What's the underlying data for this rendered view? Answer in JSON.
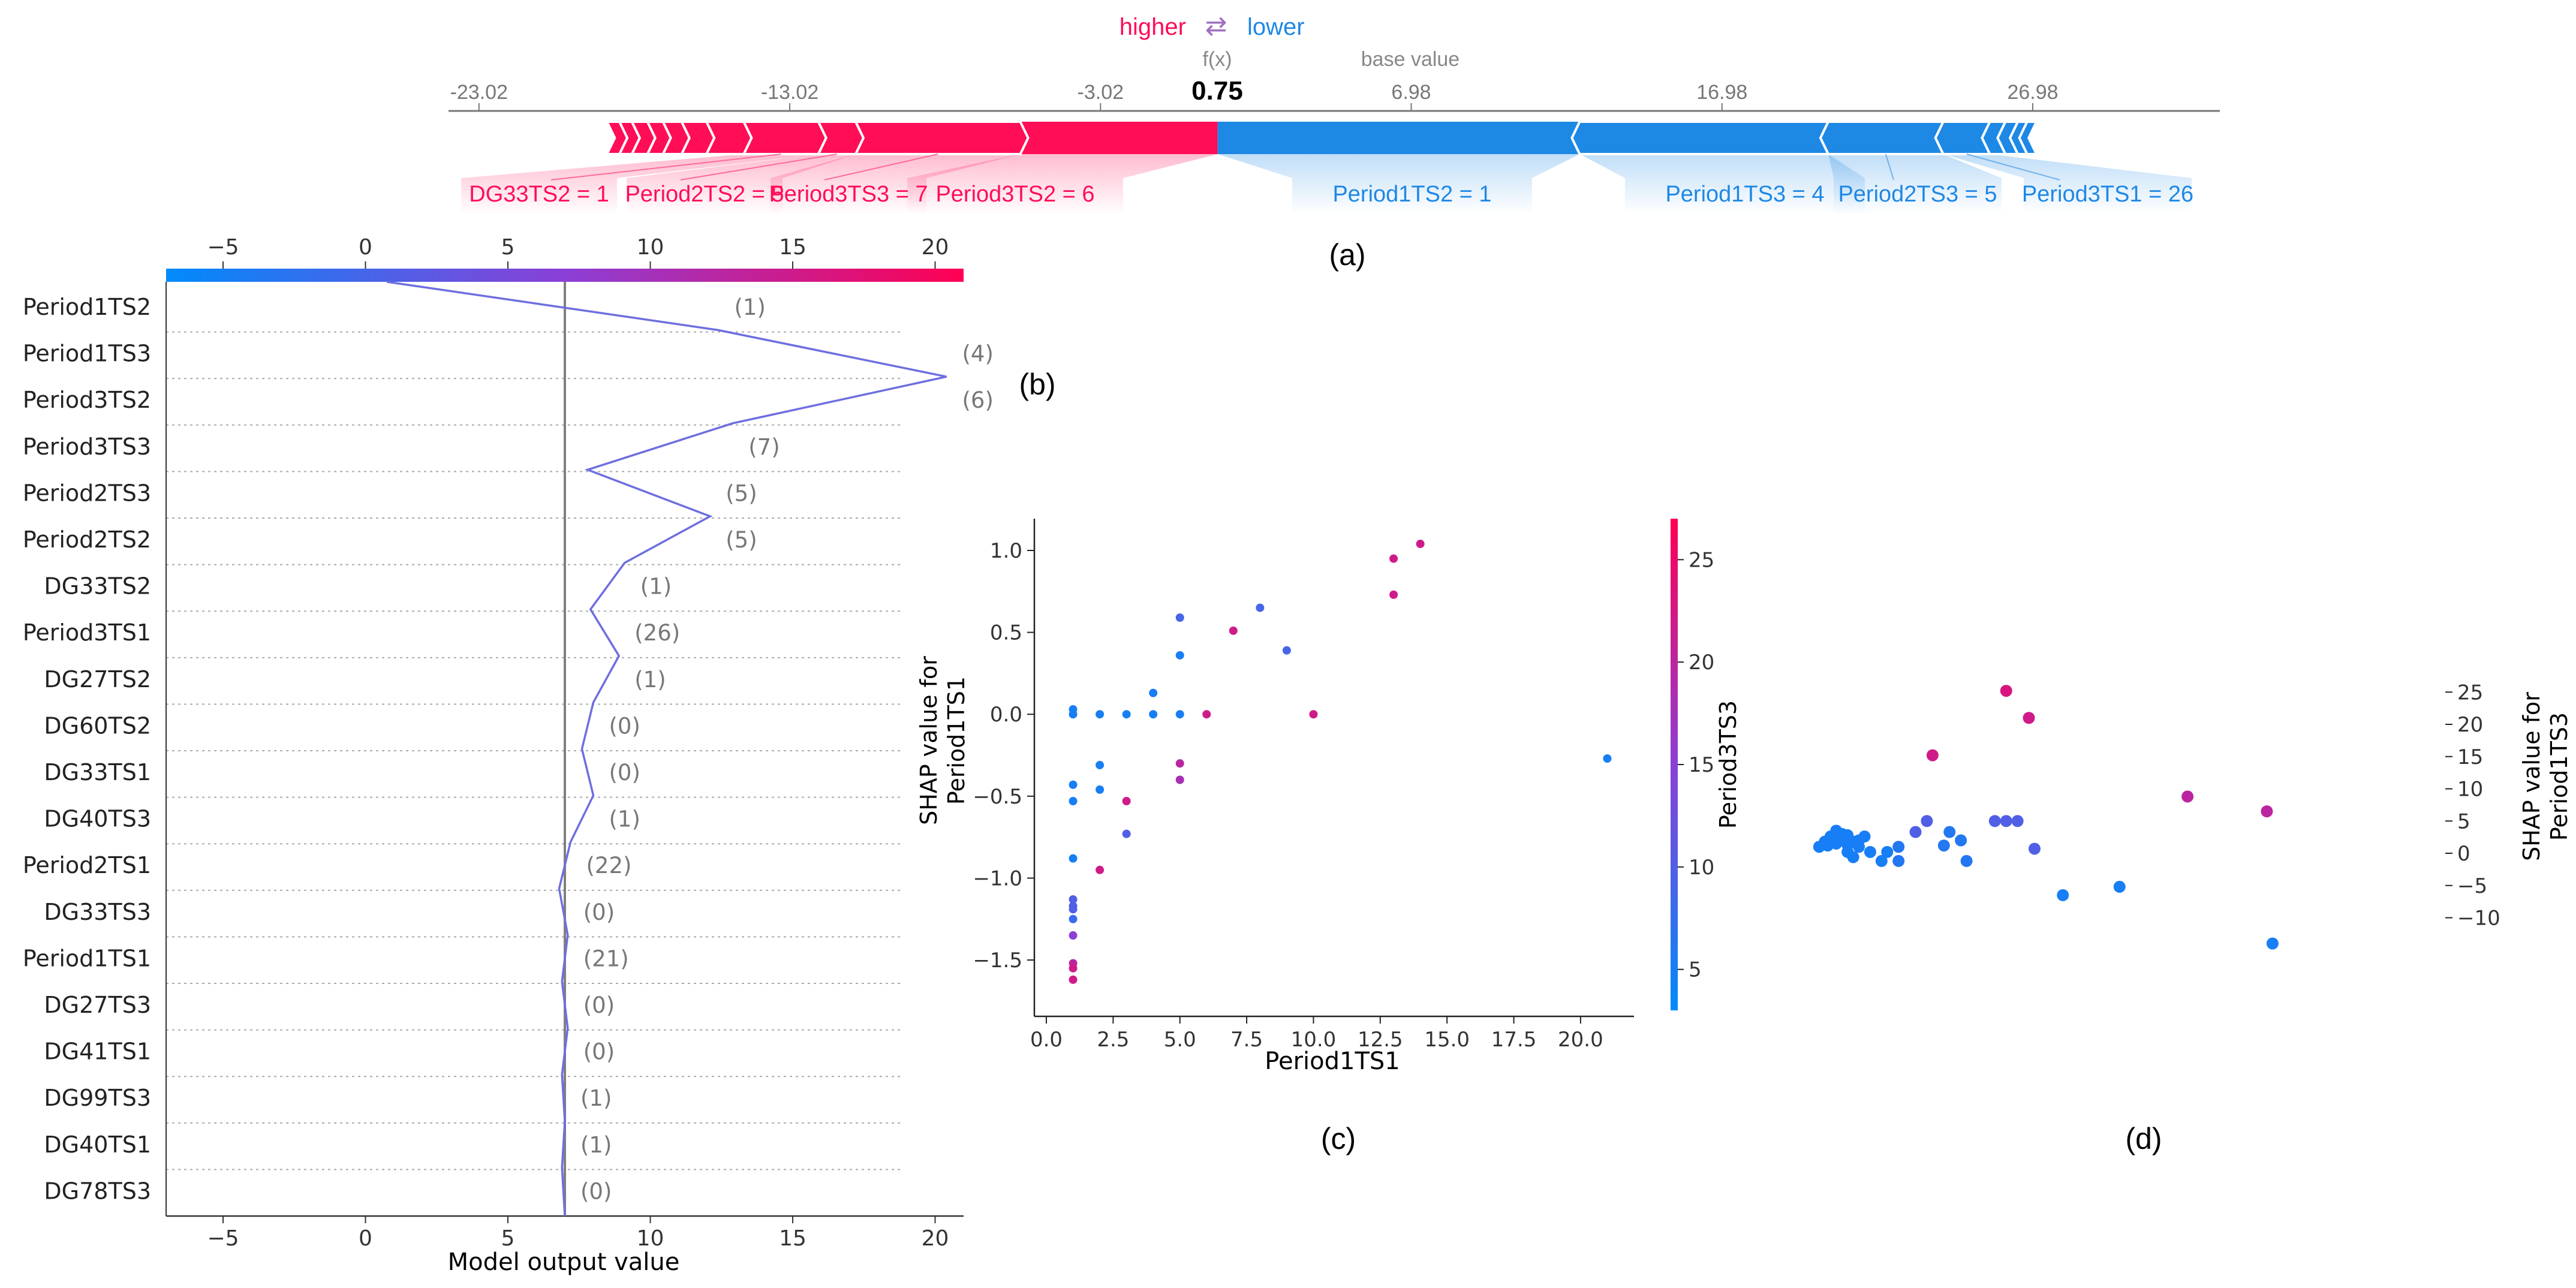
{
  "panel_labels": {
    "a": "(a)",
    "b": "(b)",
    "c": "(c)",
    "d": "(d)"
  },
  "colors": {
    "pos": "#ff0d57",
    "neg": "#1e88e5",
    "line": "#6e6ee0",
    "grey": "#777777"
  },
  "chart_data": [
    {
      "type": "force",
      "id": "a",
      "legend_higher": "higher",
      "legend_arrow": "⇄",
      "legend_lower": "lower",
      "fx_label": "f(x)",
      "fx_value": "0.75",
      "base_label": "base value",
      "ticks": [
        "-23.02",
        "-13.02",
        "-3.02",
        "6.98",
        "16.98",
        "26.98"
      ],
      "tick_values": [
        -23.02,
        -13.02,
        -3.02,
        6.98,
        16.98,
        26.98
      ],
      "xlim": [
        -24,
        33
      ],
      "output_value": 0.75,
      "base_value": 6.98,
      "positive": [
        {
          "label": "Period3TS2 = 6",
          "start": 0.75,
          "end": -5.6
        },
        {
          "label": "Period3TS3 = 7",
          "start": -5.6,
          "end": -10.9
        },
        {
          "label": "Period2TS2 = 5",
          "start": -10.9,
          "end": -12.1
        },
        {
          "label": "DG33TS2 = 1",
          "start": -12.1,
          "end": -14.5
        },
        {
          "label": "",
          "start": -14.5,
          "end": -15.7
        },
        {
          "label": "",
          "start": -15.7,
          "end": -16.5
        },
        {
          "label": "",
          "start": -16.5,
          "end": -17.1
        },
        {
          "label": "",
          "start": -17.1,
          "end": -17.6
        },
        {
          "label": "",
          "start": -17.6,
          "end": -18.1
        },
        {
          "label": "",
          "start": -18.1,
          "end": -18.5
        },
        {
          "label": "",
          "start": -18.5,
          "end": -18.9
        }
      ],
      "negative": [
        {
          "label": "Period1TS2 = 1",
          "start": 0.75,
          "end": 12.4
        },
        {
          "label": "Period1TS3 = 4",
          "start": 12.4,
          "end": 20.4
        },
        {
          "label": "Period2TS3 = 5",
          "start": 20.4,
          "end": 24.1
        },
        {
          "label": "Period3TS1 = 26",
          "start": 24.1,
          "end": 25.6
        },
        {
          "label": "",
          "start": 25.6,
          "end": 26.1
        },
        {
          "label": "",
          "start": 26.1,
          "end": 26.5
        },
        {
          "label": "",
          "start": 26.5,
          "end": 26.8
        },
        {
          "label": "",
          "start": 26.8,
          "end": 27.1
        }
      ]
    },
    {
      "type": "line",
      "id": "b",
      "xlabel": "Model output value",
      "xlim": [
        -7,
        21
      ],
      "xticks": [
        -5,
        0,
        5,
        10,
        15,
        20
      ],
      "base_value": 7,
      "features": [
        "Period1TS2",
        "Period1TS3",
        "Period3TS2",
        "Period3TS3",
        "Period2TS3",
        "Period2TS2",
        "DG33TS2",
        "Period3TS1",
        "DG27TS2",
        "DG60TS2",
        "DG33TS1",
        "DG40TS3",
        "Period2TS1",
        "DG33TS3",
        "Period1TS1",
        "DG27TS3",
        "DG41TS1",
        "DG99TS3",
        "DG40TS1",
        "DG78TS3"
      ],
      "feature_values": [
        "(1)",
        "(4)",
        "(6)",
        "(7)",
        "(5)",
        "(5)",
        "(1)",
        "(26)",
        "(1)",
        "(0)",
        "(0)",
        "(1)",
        "(22)",
        "(0)",
        "(21)",
        "(0)",
        "(0)",
        "(1)",
        "(1)",
        "(0)"
      ],
      "path": [
        0.75,
        12.4,
        20.4,
        12.9,
        7.8,
        12.1,
        9.1,
        7.9,
        8.9,
        8.0,
        7.6,
        8.0,
        7.2,
        6.8,
        7.1,
        6.9,
        7.1,
        6.9,
        7.0,
        6.9,
        7.0
      ]
    },
    {
      "type": "scatter",
      "id": "c",
      "xlabel": "Period1TS1",
      "ylabel_line1": "SHAP value for",
      "ylabel_line2": "Period1TS1",
      "colorbar_label": "Period3TS3",
      "xlim": [
        0,
        22
      ],
      "ylim": [
        -1.8,
        1.15
      ],
      "xticks": [
        0.0,
        2.5,
        5.0,
        7.5,
        10.0,
        12.5,
        15.0,
        17.5,
        20.0
      ],
      "xtick_labels": [
        "0.0",
        "2.5",
        "5.0",
        "7.5",
        "10.0",
        "12.5",
        "15.0",
        "17.5",
        "20.0"
      ],
      "yticks": [
        1.0,
        0.5,
        0.0,
        -0.5,
        -1.0,
        -1.5
      ],
      "ytick_labels": [
        "1.0",
        "0.5",
        "0.0",
        "−0.5",
        "−1.0",
        "−1.5"
      ],
      "cticks": [
        5,
        10,
        15,
        20,
        25
      ],
      "clim": [
        3,
        27
      ],
      "points": [
        [
          1,
          0.03,
          5
        ],
        [
          1,
          0.0,
          5
        ],
        [
          2,
          0.0,
          5
        ],
        [
          3,
          0.0,
          5
        ],
        [
          4,
          0.0,
          5
        ],
        [
          5,
          0.0,
          5
        ],
        [
          4,
          0.13,
          5
        ],
        [
          5,
          0.36,
          5
        ],
        [
          5,
          0.59,
          9
        ],
        [
          8,
          0.65,
          9
        ],
        [
          9,
          0.39,
          9
        ],
        [
          7,
          0.51,
          22
        ],
        [
          6,
          0.0,
          22
        ],
        [
          10,
          0.0,
          22
        ],
        [
          13,
          0.95,
          22
        ],
        [
          14,
          1.04,
          22
        ],
        [
          13,
          0.73,
          22
        ],
        [
          21,
          -0.27,
          5
        ],
        [
          2,
          -0.31,
          5
        ],
        [
          2,
          -0.46,
          5
        ],
        [
          1,
          -0.43,
          5
        ],
        [
          1,
          -0.53,
          5
        ],
        [
          3,
          -0.53,
          22
        ],
        [
          5,
          -0.3,
          20
        ],
        [
          5,
          -0.4,
          18
        ],
        [
          3,
          -0.73,
          10
        ],
        [
          1,
          -0.88,
          5
        ],
        [
          2,
          -0.95,
          22
        ],
        [
          1,
          -1.13,
          10
        ],
        [
          1,
          -1.17,
          10
        ],
        [
          1,
          -1.19,
          10
        ],
        [
          1,
          -1.25,
          8
        ],
        [
          1,
          -1.35,
          15
        ],
        [
          1,
          -1.52,
          20
        ],
        [
          1,
          -1.55,
          22
        ],
        [
          1,
          -1.62,
          22
        ]
      ]
    },
    {
      "type": "scatter",
      "id": "d",
      "ylabel_line1": "SHAP value for",
      "ylabel_line2": "Period1TS3",
      "yticks": [
        25,
        20,
        15,
        10,
        5,
        0,
        -5,
        -10
      ],
      "ytick_labels": [
        "25",
        "20",
        "15",
        "10",
        "5",
        "0",
        "−5",
        "−10"
      ],
      "xlim": [
        0,
        100
      ],
      "ylim": [
        -14,
        27
      ],
      "points": [
        [
          2,
          1.0,
          5
        ],
        [
          3,
          1.8,
          5
        ],
        [
          4,
          2.6,
          5
        ],
        [
          5,
          3.5,
          5
        ],
        [
          3.5,
          1.2,
          5
        ],
        [
          5,
          1.5,
          5
        ],
        [
          6,
          2.3,
          5
        ],
        [
          7,
          1.3,
          5
        ],
        [
          8,
          1.8,
          5
        ],
        [
          9,
          2.0,
          5
        ],
        [
          7,
          2.8,
          5
        ],
        [
          9,
          1.0,
          5
        ],
        [
          10,
          2.6,
          5
        ],
        [
          6,
          3.0,
          5
        ],
        [
          8,
          -0.6,
          5
        ],
        [
          7,
          0.2,
          5
        ],
        [
          11,
          0.2,
          5
        ],
        [
          13,
          -1.2,
          5
        ],
        [
          14,
          0.2,
          5
        ],
        [
          16,
          -1.2,
          6
        ],
        [
          16,
          1.0,
          6
        ],
        [
          19,
          3.3,
          10
        ],
        [
          25,
          3.3,
          6
        ],
        [
          27,
          2.0,
          6
        ],
        [
          24,
          1.2,
          6
        ],
        [
          28,
          -1.2,
          6
        ],
        [
          21,
          5.0,
          10
        ],
        [
          33,
          5.0,
          10
        ],
        [
          35,
          5.0,
          10
        ],
        [
          37,
          5.0,
          10
        ],
        [
          40,
          0.7,
          10
        ],
        [
          45,
          -6.5,
          5
        ],
        [
          55,
          -5.2,
          5
        ],
        [
          82,
          -14.0,
          5
        ],
        [
          22,
          15.2,
          22
        ],
        [
          35,
          25.2,
          23
        ],
        [
          39,
          21.0,
          22
        ],
        [
          67,
          8.8,
          20
        ],
        [
          81,
          6.5,
          20
        ]
      ]
    }
  ]
}
